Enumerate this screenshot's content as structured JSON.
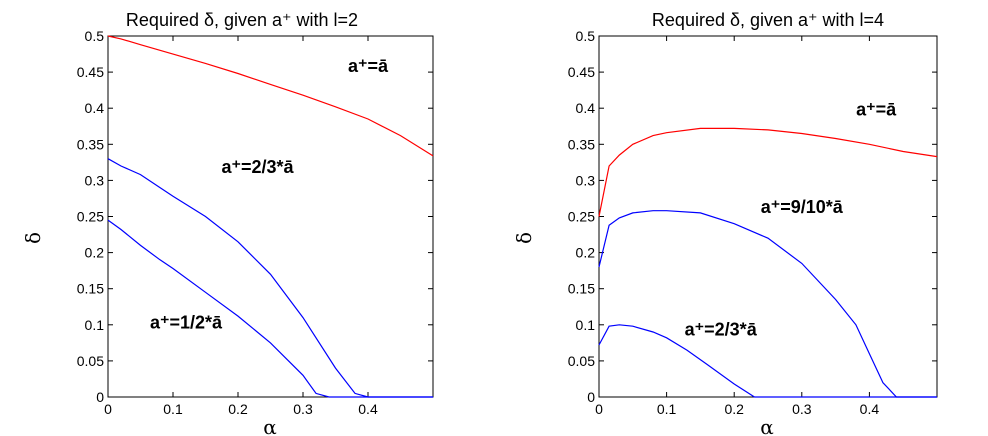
{
  "chart_data": [
    {
      "type": "line",
      "title": "Required δ, given a⁺ with l=2",
      "xlabel": "α",
      "ylabel": "δ",
      "xlim": [
        0,
        0.5
      ],
      "ylim": [
        0,
        0.5
      ],
      "x_ticks": [
        "0",
        "0.1",
        "0.2",
        "0.3",
        "0.4"
      ],
      "y_ticks": [
        "0",
        "0.05",
        "0.1",
        "0.15",
        "0.2",
        "0.25",
        "0.3",
        "0.35",
        "0.4",
        "0.45",
        "0.5"
      ],
      "grid": false,
      "series": [
        {
          "color": "#ff0000",
          "label": "a⁺=ā",
          "label_pos": [
            0.4,
            0.45
          ],
          "x": [
            0,
            0.02,
            0.05,
            0.1,
            0.15,
            0.2,
            0.25,
            0.3,
            0.35,
            0.4,
            0.45,
            0.5
          ],
          "y": [
            0.5,
            0.496,
            0.488,
            0.475,
            0.462,
            0.448,
            0.433,
            0.418,
            0.402,
            0.385,
            0.362,
            0.334
          ]
        },
        {
          "color": "#0000ff",
          "label": "a⁺=2/3*ā",
          "label_pos": [
            0.23,
            0.31
          ],
          "x": [
            0,
            0.02,
            0.05,
            0.08,
            0.1,
            0.15,
            0.2,
            0.25,
            0.3,
            0.35,
            0.38,
            0.4,
            0.42,
            0.5
          ],
          "y": [
            0.33,
            0.32,
            0.308,
            0.29,
            0.278,
            0.25,
            0.215,
            0.17,
            0.11,
            0.04,
            0.005,
            0,
            0,
            0
          ]
        },
        {
          "color": "#0000ff",
          "label": "a⁺=1/2*ā",
          "label_pos": [
            0.12,
            0.095
          ],
          "x": [
            0,
            0.02,
            0.05,
            0.08,
            0.1,
            0.15,
            0.2,
            0.25,
            0.3,
            0.32,
            0.34,
            0.5
          ],
          "y": [
            0.245,
            0.232,
            0.21,
            0.19,
            0.178,
            0.145,
            0.112,
            0.075,
            0.03,
            0.005,
            0,
            0
          ]
        }
      ]
    },
    {
      "type": "line",
      "title": "Required δ, given a⁺ with l=4",
      "xlabel": "α",
      "ylabel": "δ",
      "xlim": [
        0,
        0.5
      ],
      "ylim": [
        0,
        0.5
      ],
      "x_ticks": [
        "0",
        "0.1",
        "0.2",
        "0.3",
        "0.4"
      ],
      "y_ticks": [
        "0",
        "0.05",
        "0.1",
        "0.15",
        "0.2",
        "0.25",
        "0.3",
        "0.35",
        "0.4",
        "0.45",
        "0.5"
      ],
      "grid": false,
      "series": [
        {
          "color": "#ff0000",
          "label": "a⁺=ā",
          "label_pos": [
            0.41,
            0.39
          ],
          "x": [
            0,
            0.015,
            0.03,
            0.05,
            0.08,
            0.1,
            0.15,
            0.2,
            0.25,
            0.3,
            0.35,
            0.4,
            0.45,
            0.5
          ],
          "y": [
            0.25,
            0.32,
            0.335,
            0.35,
            0.362,
            0.366,
            0.372,
            0.372,
            0.37,
            0.365,
            0.358,
            0.35,
            0.34,
            0.333
          ]
        },
        {
          "color": "#0000ff",
          "label": "a⁺=9/10*ā",
          "label_pos": [
            0.3,
            0.255
          ],
          "x": [
            0,
            0.015,
            0.03,
            0.05,
            0.08,
            0.1,
            0.15,
            0.2,
            0.25,
            0.3,
            0.35,
            0.38,
            0.4,
            0.42,
            0.44,
            0.5
          ],
          "y": [
            0.18,
            0.238,
            0.248,
            0.255,
            0.258,
            0.258,
            0.255,
            0.24,
            0.22,
            0.185,
            0.135,
            0.1,
            0.06,
            0.02,
            0,
            0
          ]
        },
        {
          "color": "#0000ff",
          "label": "a⁺=2/3*ā",
          "label_pos": [
            0.18,
            0.085
          ],
          "x": [
            0,
            0.015,
            0.03,
            0.05,
            0.08,
            0.1,
            0.13,
            0.16,
            0.2,
            0.23,
            0.25,
            0.5
          ],
          "y": [
            0.072,
            0.098,
            0.1,
            0.098,
            0.09,
            0.082,
            0.065,
            0.045,
            0.018,
            0,
            0,
            0
          ]
        }
      ]
    }
  ]
}
